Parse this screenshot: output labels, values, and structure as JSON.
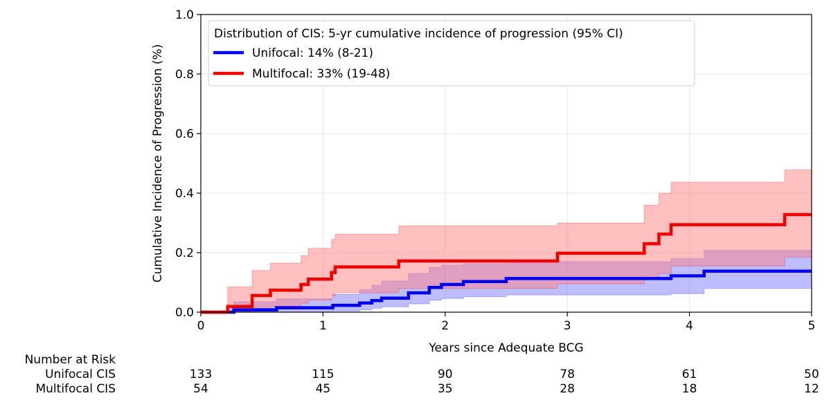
{
  "chart_data": {
    "type": "line",
    "title": "",
    "xlabel": "Years since Adequate BCG",
    "ylabel": "Cumulative Incidence of Progression (%)",
    "xlim": [
      0,
      5
    ],
    "ylim": [
      0,
      1
    ],
    "x_ticks": [
      "0",
      "1",
      "2",
      "3",
      "4",
      "5"
    ],
    "y_ticks": [
      "0.0",
      "0.2",
      "0.4",
      "0.6",
      "0.8",
      "1.0"
    ],
    "grid": true,
    "legend_title": "Distribution of CIS: 5-yr cumulative incidence of progression (95% CI)",
    "legend_position": "top-left",
    "series": [
      {
        "name": "Unifocal: 14% (8-21)",
        "color": "#0000ee",
        "band_color": "#7b7bff",
        "step_x": [
          0,
          0.27,
          0.62,
          1.08,
          1.3,
          1.4,
          1.48,
          1.7,
          1.87,
          1.97,
          2.15,
          2.5,
          3.85,
          4.12,
          5.0
        ],
        "step_y": [
          0,
          0.008,
          0.015,
          0.023,
          0.031,
          0.039,
          0.047,
          0.065,
          0.083,
          0.093,
          0.103,
          0.113,
          0.122,
          0.138,
          0.138
        ],
        "ci_lower": [
          0,
          0,
          0,
          0.004,
          0.008,
          0.013,
          0.018,
          0.028,
          0.04,
          0.046,
          0.052,
          0.058,
          0.062,
          0.08,
          0.08
        ],
        "ci_upper": [
          0,
          0.035,
          0.045,
          0.06,
          0.075,
          0.09,
          0.105,
          0.13,
          0.15,
          0.158,
          0.163,
          0.17,
          0.18,
          0.208,
          0.208
        ]
      },
      {
        "name": "Multifocal: 33% (19-48)",
        "color": "#ee0000",
        "band_color": "#ff8080",
        "step_x": [
          0,
          0.22,
          0.42,
          0.57,
          0.82,
          0.88,
          1.07,
          1.1,
          1.62,
          2.92,
          3.63,
          3.75,
          3.85,
          4.78,
          5.0
        ],
        "step_y": [
          0,
          0.019,
          0.056,
          0.074,
          0.093,
          0.111,
          0.133,
          0.152,
          0.172,
          0.198,
          0.23,
          0.262,
          0.294,
          0.328,
          0.328
        ],
        "ci_lower": [
          0,
          0,
          0.01,
          0.02,
          0.03,
          0.04,
          0.055,
          0.065,
          0.08,
          0.095,
          0.11,
          0.13,
          0.155,
          0.185,
          0.185
        ],
        "ci_upper": [
          0,
          0.085,
          0.14,
          0.165,
          0.19,
          0.215,
          0.245,
          0.262,
          0.29,
          0.3,
          0.36,
          0.4,
          0.437,
          0.478,
          0.478
        ]
      }
    ]
  },
  "risk_table": {
    "title": "Number at Risk",
    "rows": [
      {
        "label": "Unifocal CIS",
        "values": [
          "133",
          "115",
          "90",
          "78",
          "61",
          "50"
        ]
      },
      {
        "label": "Multifocal CIS",
        "values": [
          "54",
          "45",
          "35",
          "28",
          "18",
          "12"
        ]
      }
    ]
  }
}
